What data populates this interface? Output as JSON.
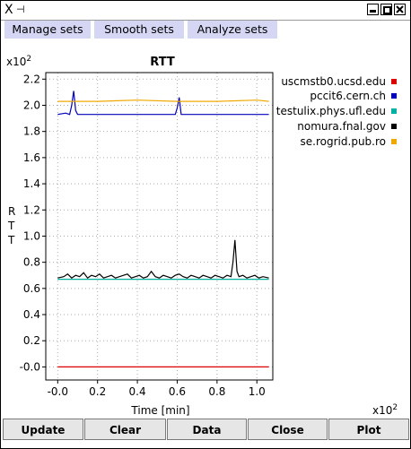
{
  "window": {
    "title_icons": {
      "left": "X",
      "pin": "⊣"
    },
    "controls": [
      "minimize",
      "maximize",
      "close"
    ]
  },
  "menu": {
    "items": [
      "Manage sets",
      "Smooth sets",
      "Analyze sets"
    ]
  },
  "chart_data": {
    "type": "line",
    "title": "RTT",
    "xlabel": "Time [min]",
    "ylabel": "R T T",
    "x_multiplier": "x10",
    "x_multiplier_exp": "2",
    "y_multiplier": "x10",
    "y_multiplier_exp": "2",
    "xlim": [
      -0.06,
      1.08
    ],
    "ylim": [
      -0.1,
      2.25
    ],
    "x_ticks": [
      0.0,
      0.2,
      0.4,
      0.6,
      0.8,
      1.0
    ],
    "x_tick_labels": [
      "-0.0",
      "0.2",
      "0.4",
      "0.6",
      "0.8",
      "1.0"
    ],
    "y_ticks": [
      0.0,
      0.2,
      0.4,
      0.6,
      0.8,
      1.0,
      1.2,
      1.4,
      1.6,
      1.8,
      2.0,
      2.2
    ],
    "y_tick_labels": [
      "-0.0",
      "0.2",
      "0.4",
      "0.6",
      "0.8",
      "1.0",
      "1.2",
      "1.4",
      "1.6",
      "1.8",
      "2.0",
      "2.2"
    ],
    "grid": true,
    "legend_position": "right",
    "series": [
      {
        "name": "uscmstb0.ucsd.edu",
        "color": "#dd0000",
        "x": [
          0.0,
          1.06
        ],
        "y": [
          0.0,
          0.0
        ]
      },
      {
        "name": "pccit6.cern.ch",
        "color": "#0000bb",
        "x": [
          0.0,
          0.04,
          0.06,
          0.07,
          0.08,
          0.09,
          0.1,
          0.2,
          0.4,
          0.59,
          0.6,
          0.61,
          0.62,
          0.8,
          1.06
        ],
        "y": [
          1.93,
          1.94,
          1.93,
          2.0,
          2.11,
          1.96,
          1.93,
          1.93,
          1.93,
          1.93,
          1.98,
          2.06,
          1.93,
          1.93,
          1.93
        ]
      },
      {
        "name": "testulix.phys.ufl.edu",
        "color": "#00b0a0",
        "x": [
          0.0,
          0.2,
          0.4,
          0.6,
          0.8,
          1.0,
          1.06
        ],
        "y": [
          0.67,
          0.67,
          0.67,
          0.67,
          0.67,
          0.67,
          0.67
        ]
      },
      {
        "name": "nomura.fnal.gov",
        "color": "#000000",
        "x": [
          0.0,
          0.03,
          0.05,
          0.07,
          0.09,
          0.11,
          0.13,
          0.15,
          0.17,
          0.19,
          0.21,
          0.23,
          0.25,
          0.27,
          0.29,
          0.31,
          0.33,
          0.35,
          0.37,
          0.39,
          0.41,
          0.43,
          0.45,
          0.47,
          0.49,
          0.51,
          0.53,
          0.55,
          0.57,
          0.59,
          0.61,
          0.63,
          0.65,
          0.67,
          0.69,
          0.71,
          0.73,
          0.75,
          0.77,
          0.79,
          0.81,
          0.83,
          0.85,
          0.87,
          0.88,
          0.89,
          0.9,
          0.91,
          0.93,
          0.95,
          0.97,
          0.99,
          1.01,
          1.03,
          1.06
        ],
        "y": [
          0.68,
          0.69,
          0.71,
          0.68,
          0.7,
          0.69,
          0.72,
          0.68,
          0.7,
          0.69,
          0.71,
          0.68,
          0.69,
          0.7,
          0.68,
          0.69,
          0.7,
          0.71,
          0.68,
          0.69,
          0.7,
          0.68,
          0.69,
          0.73,
          0.69,
          0.68,
          0.7,
          0.69,
          0.68,
          0.7,
          0.71,
          0.69,
          0.68,
          0.7,
          0.69,
          0.68,
          0.7,
          0.69,
          0.68,
          0.7,
          0.69,
          0.68,
          0.7,
          0.69,
          0.8,
          0.97,
          0.73,
          0.69,
          0.7,
          0.68,
          0.69,
          0.7,
          0.68,
          0.69,
          0.68
        ]
      },
      {
        "name": "se.rogrid.pub.ro",
        "color": "#f0a800",
        "x": [
          0.0,
          0.2,
          0.4,
          0.6,
          0.8,
          1.0,
          1.06
        ],
        "y": [
          2.03,
          2.03,
          2.04,
          2.03,
          2.03,
          2.04,
          2.03
        ]
      }
    ]
  },
  "buttons": [
    "Update",
    "Clear",
    "Data",
    "Close",
    "Plot"
  ]
}
